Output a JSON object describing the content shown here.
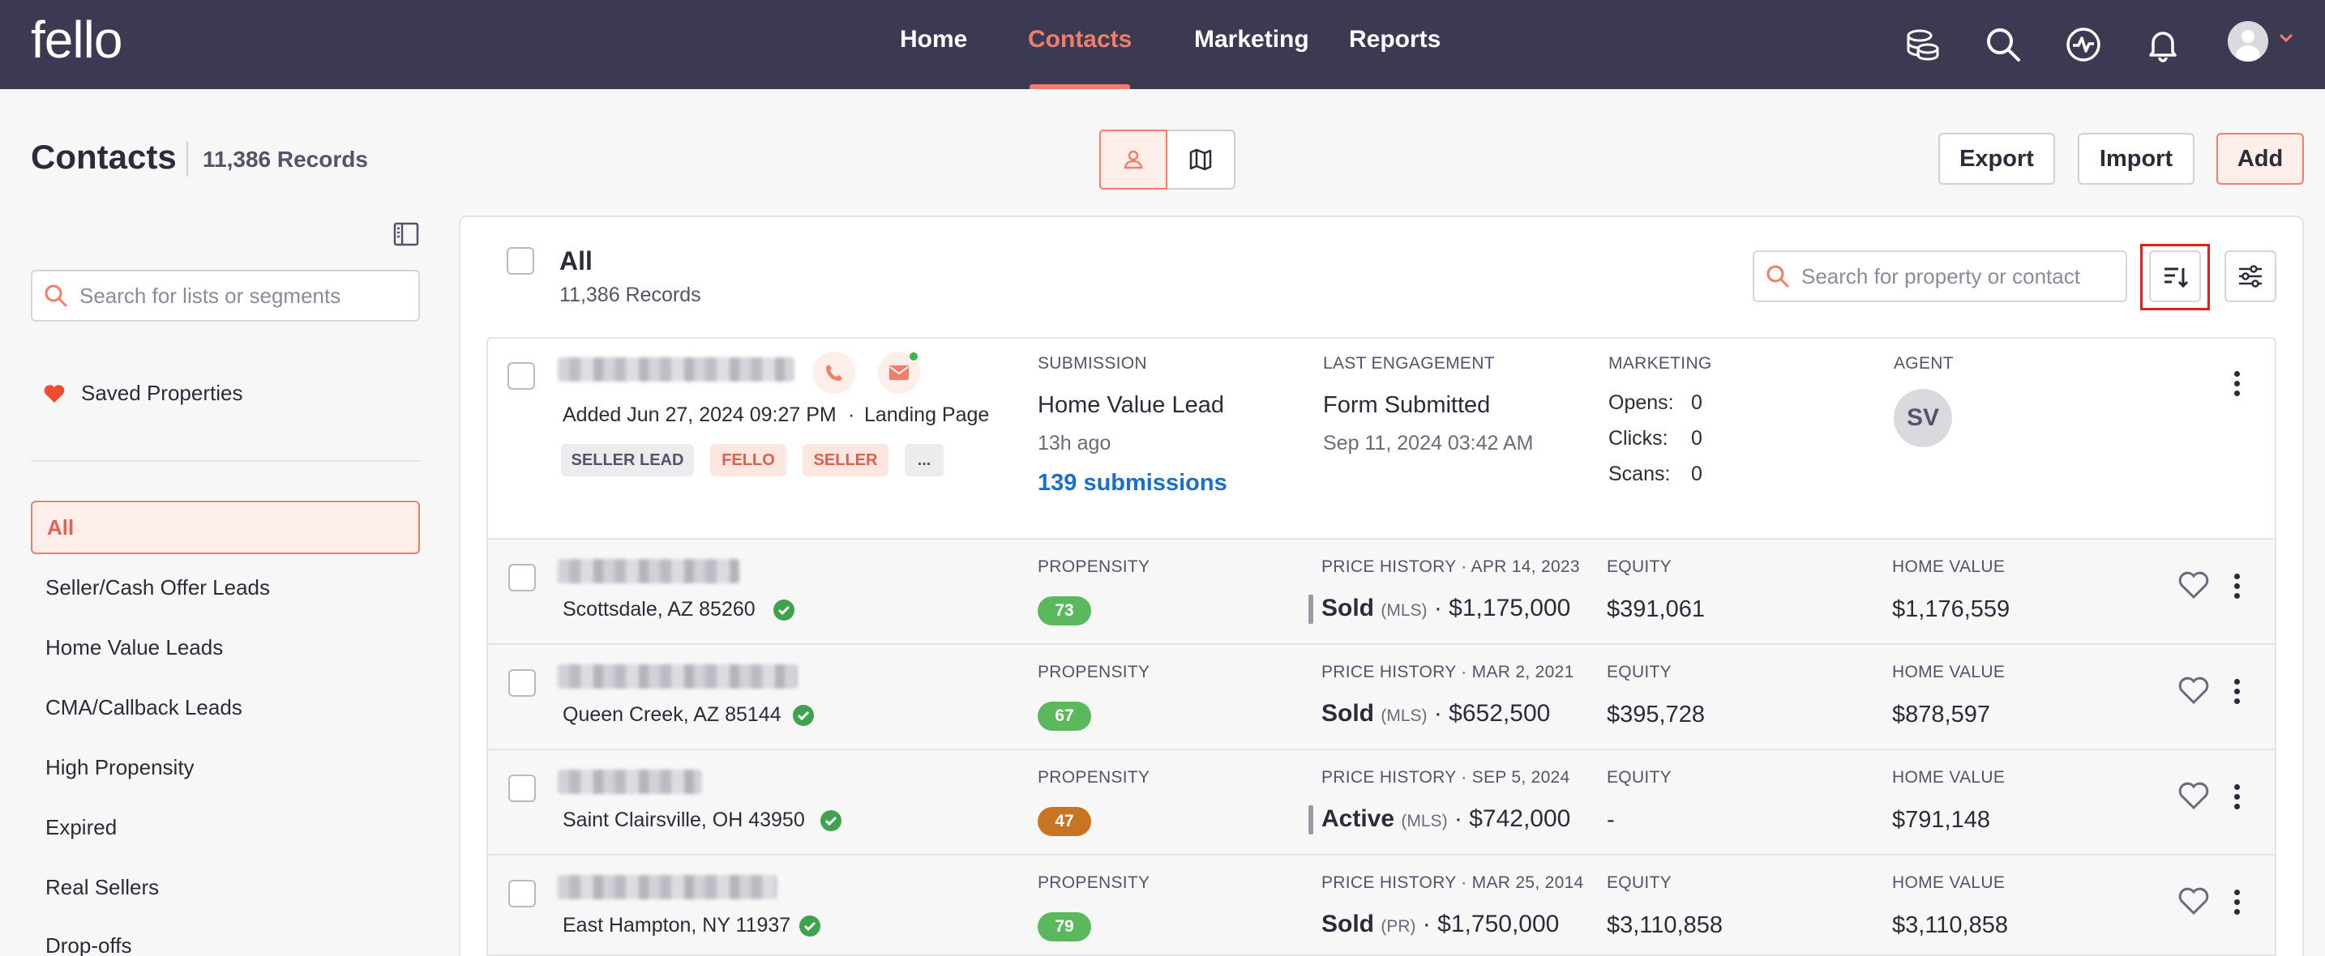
{
  "nav": {
    "logo": "fello",
    "items": [
      "Home",
      "Contacts",
      "Marketing",
      "Reports"
    ],
    "active": "Contacts"
  },
  "header": {
    "title": "Contacts",
    "count": "11,386 Records",
    "export": "Export",
    "import": "Import",
    "add": "Add"
  },
  "sidebar": {
    "search_placeholder": "Search for lists or segments",
    "saved": "Saved Properties",
    "items": [
      "All",
      "Seller/Cash Offer Leads",
      "Home Value Leads",
      "CMA/Callback Leads",
      "High Propensity",
      "Expired",
      "Real Sellers",
      "Drop-offs"
    ]
  },
  "list": {
    "title": "All",
    "count": "11,386 Records",
    "search_placeholder": "Search for property or contact"
  },
  "lead": {
    "added": "Added Jun 27, 2024 09:27 PM",
    "source": "Landing Page",
    "tags": [
      "SELLER LEAD",
      "FELLO",
      "SELLER",
      "..."
    ],
    "submission_label": "SUBMISSION",
    "submission_type": "Home Value Lead",
    "submission_time": "13h ago",
    "submission_link": "139 submissions",
    "engagement_label": "LAST ENGAGEMENT",
    "engagement_value": "Form Submitted",
    "engagement_time": "Sep 11, 2024 03:42 AM",
    "marketing_label": "MARKETING",
    "opens_label": "Opens:",
    "opens": "0",
    "clicks_label": "Clicks:",
    "clicks": "0",
    "scans_label": "Scans:",
    "scans": "0",
    "agent_label": "AGENT",
    "agent_initials": "SV"
  },
  "labels": {
    "propensity": "PROPENSITY",
    "equity": "EQUITY",
    "home_value": "HOME VALUE"
  },
  "rows": [
    {
      "location": "Scottsdale, AZ 85260",
      "propensity": "73",
      "propensity_color": "#5cb85c",
      "price_history": "PRICE HISTORY · APR 14, 2023",
      "status": "Sold",
      "source": "(MLS)",
      "price": "· $1,175,000",
      "equity": "$391,061",
      "home_value": "$1,176,559"
    },
    {
      "location": "Queen Creek, AZ 85144",
      "propensity": "67",
      "propensity_color": "#5cb85c",
      "price_history": "PRICE HISTORY · MAR 2, 2021",
      "status": "Sold",
      "source": "(MLS)",
      "price": "· $652,500",
      "equity": "$395,728",
      "home_value": "$878,597"
    },
    {
      "location": "Saint Clairsville, OH 43950",
      "propensity": "47",
      "propensity_color": "#c97423",
      "price_history": "PRICE HISTORY · SEP 5, 2024",
      "status": "Active",
      "source": "(MLS)",
      "price": "· $742,000",
      "equity": "-",
      "home_value": "$791,148"
    },
    {
      "location": "East Hampton, NY 11937",
      "propensity": "79",
      "propensity_color": "#5cb85c",
      "price_history": "PRICE HISTORY · MAR 25, 2014",
      "status": "Sold",
      "source": "(PR)",
      "price": "· $1,750,000",
      "equity": "$3,110,858",
      "home_value": "$3,110,858"
    }
  ]
}
